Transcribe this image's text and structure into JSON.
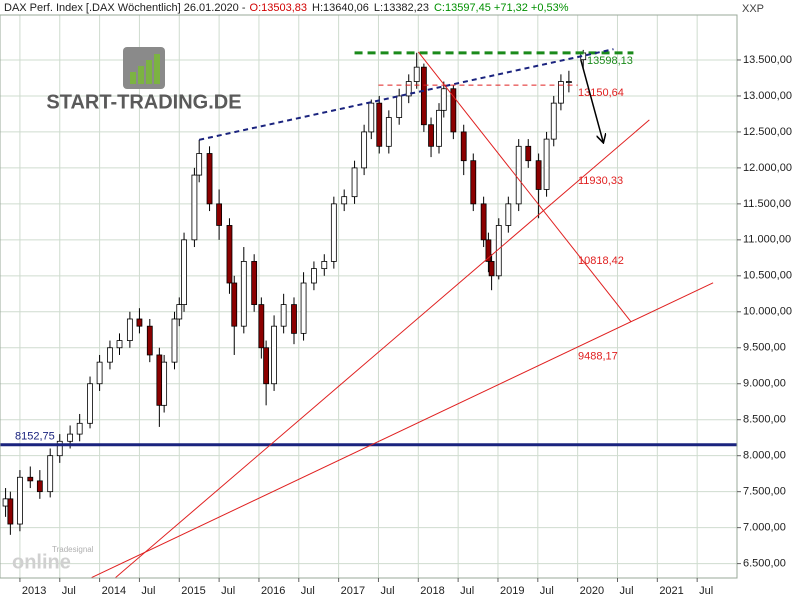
{
  "chart_data": {
    "type": "candlestick",
    "title": "DAX Perf. Index [.DAX  Wöchentlich] 26.01.2020 -",
    "quote": [
      {
        "text": "O:13503,83",
        "color": "#d00000"
      },
      {
        "text": "H:13640,06",
        "color": "#202020"
      },
      {
        "text": "L:13382,23",
        "color": "#202020"
      },
      {
        "text": "C:13597,45 +71,32 +0,53%",
        "color": "#009000"
      }
    ],
    "y_axis_label": "XXP",
    "watermarks": {
      "brand": "START-TRADING.DE",
      "vendor": "Tradesignal",
      "product": "online"
    },
    "up_color": "#ffffff",
    "down_color": "#8b0000",
    "wick_color": "#000000",
    "grid": true,
    "grid_color": "#cfdccf",
    "xlim": [
      2012.75,
      2022.0
    ],
    "ylim": [
      6300,
      14125
    ],
    "xticks": [
      2013,
      {
        "value": 2013.5,
        "label": "Jul"
      },
      2014,
      {
        "value": 2014.5,
        "label": "Jul"
      },
      2015,
      {
        "value": 2015.5,
        "label": "Jul"
      },
      2016,
      {
        "value": 2016.5,
        "label": "Jul"
      },
      2017,
      {
        "value": 2017.5,
        "label": "Jul"
      },
      2018,
      {
        "value": 2018.5,
        "label": "Jul"
      },
      2019,
      {
        "value": 2019.5,
        "label": "Jul"
      },
      2020,
      {
        "value": 2020.5,
        "label": "Jul"
      },
      2021,
      {
        "value": 2021.5,
        "label": "Jul"
      }
    ],
    "yticks": [
      {
        "value": 6500,
        "label": "6.500,00"
      },
      {
        "value": 7000,
        "label": "7.000,00"
      },
      {
        "value": 7500,
        "label": "7.500,00"
      },
      {
        "value": 8000,
        "label": "8.000,00"
      },
      {
        "value": 8500,
        "label": "8.500,00"
      },
      {
        "value": 9000,
        "label": "9.000,00"
      },
      {
        "value": 9500,
        "label": "9.500,00"
      },
      {
        "value": 10000,
        "label": "10.000,00"
      },
      {
        "value": 10500,
        "label": "10.500,00"
      },
      {
        "value": 11000,
        "label": "11.000,00"
      },
      {
        "value": 11500,
        "label": "11.500,00"
      },
      {
        "value": 12000,
        "label": "12.000,00"
      },
      {
        "value": 12500,
        "label": "12.500,00"
      },
      {
        "value": 13000,
        "label": "13.000,00"
      },
      {
        "value": 13500,
        "label": "13.500,00"
      }
    ],
    "x": [
      2012.82,
      2012.88,
      2013.0,
      2013.13,
      2013.25,
      2013.38,
      2013.5,
      2013.63,
      2013.75,
      2013.88,
      2014.0,
      2014.13,
      2014.25,
      2014.38,
      2014.5,
      2014.63,
      2014.75,
      2014.81,
      2014.94,
      2015.0,
      2015.06,
      2015.19,
      2015.25,
      2015.38,
      2015.5,
      2015.63,
      2015.69,
      2015.81,
      2015.94,
      2016.03,
      2016.09,
      2016.19,
      2016.31,
      2016.44,
      2016.56,
      2016.69,
      2016.82,
      2016.94,
      2017.07,
      2017.2,
      2017.32,
      2017.41,
      2017.51,
      2017.63,
      2017.76,
      2017.88,
      2017.98,
      2018.07,
      2018.16,
      2018.26,
      2018.32,
      2018.44,
      2018.57,
      2018.69,
      2018.82,
      2018.88,
      2018.92,
      2019.01,
      2019.13,
      2019.26,
      2019.38,
      2019.51,
      2019.61,
      2019.7,
      2019.79,
      2019.89,
      2020.07
    ],
    "open": [
      7300,
      7400,
      7050,
      7700,
      7650,
      7500,
      8000,
      8200,
      8300,
      8450,
      9000,
      9300,
      9500,
      9600,
      9900,
      9800,
      9400,
      8700,
      9300,
      9900,
      10100,
      11000,
      11900,
      12200,
      11500,
      11200,
      10400,
      9800,
      10700,
      10100,
      9500,
      9000,
      9800,
      10100,
      9700,
      10400,
      10600,
      10700,
      11500,
      11600,
      12000,
      12500,
      12900,
      12300,
      12700,
      13000,
      13200,
      13400,
      12600,
      12300,
      12800,
      13100,
      12500,
      12100,
      11500,
      11000,
      10700,
      10500,
      11200,
      11500,
      12300,
      12100,
      11700,
      12400,
      12900,
      13200,
      13503.83
    ],
    "high": [
      7550,
      7500,
      7800,
      7850,
      7800,
      8100,
      8300,
      8420,
      8580,
      9100,
      9400,
      9600,
      9700,
      10000,
      10050,
      9900,
      9500,
      9400,
      10000,
      10200,
      11100,
      12000,
      12390,
      12300,
      11700,
      11300,
      10500,
      10900,
      10800,
      10200,
      9600,
      9950,
      10250,
      10200,
      10550,
      10700,
      10800,
      11600,
      11700,
      12100,
      12600,
      12950,
      13000,
      12800,
      13100,
      13300,
      13600,
      13450,
      12700,
      12900,
      13200,
      13150,
      12600,
      12200,
      11600,
      11100,
      10800,
      11300,
      11600,
      12400,
      12400,
      12200,
      12500,
      13000,
      13300,
      13350,
      13640.06
    ],
    "low": [
      7150,
      6900,
      6950,
      7550,
      7400,
      7420,
      7900,
      8100,
      8200,
      8380,
      8900,
      9200,
      9400,
      9500,
      9700,
      9300,
      8400,
      8600,
      9200,
      9800,
      10000,
      10900,
      11800,
      11400,
      11000,
      10250,
      9400,
      9700,
      10000,
      9350,
      8700,
      8900,
      9700,
      9550,
      9600,
      10300,
      10500,
      10600,
      11400,
      11500,
      11900,
      12400,
      12200,
      12200,
      12600,
      12900,
      13100,
      12500,
      12150,
      12200,
      12700,
      12400,
      11900,
      11400,
      10900,
      10550,
      10300,
      10450,
      11100,
      11400,
      12000,
      11300,
      11600,
      12300,
      12800,
      13050,
      13382.23
    ],
    "close": [
      7400,
      7050,
      7700,
      7650,
      7500,
      8000,
      8200,
      8300,
      8450,
      9000,
      9300,
      9500,
      9600,
      9900,
      9800,
      9400,
      8700,
      9300,
      9900,
      10100,
      11000,
      11900,
      12200,
      11500,
      11200,
      10400,
      9800,
      10700,
      10100,
      9500,
      9000,
      9800,
      10100,
      9700,
      10400,
      10600,
      10700,
      11500,
      11600,
      12000,
      12500,
      12900,
      12300,
      12700,
      13000,
      13200,
      13400,
      12600,
      12300,
      12800,
      13100,
      12500,
      12100,
      11500,
      11000,
      10700,
      10500,
      11200,
      11500,
      12300,
      12100,
      11700,
      12400,
      12900,
      13200,
      13200,
      13597.45
    ],
    "lines": [
      {
        "x": [
          2012.75,
          2022.0
        ],
        "y": [
          8152.75,
          8152.75
        ],
        "color": "#1a237e",
        "width": 3,
        "dash": false,
        "label": {
          "value": 8152.75,
          "label": "8152,75"
        }
      },
      {
        "x": [
          2017.2,
          2020.7
        ],
        "y": [
          13598.13,
          13598.13
        ],
        "color": "#1a8a1a",
        "width": 3,
        "dash": true,
        "label": {
          "value": 13598.13,
          "label": "13598,13"
        }
      },
      {
        "x": [
          2015.25,
          2020.45
        ],
        "y": [
          12390,
          13650
        ],
        "color": "#1a237e",
        "width": 2,
        "dash": true
      },
      {
        "x": [
          2017.5,
          2020.0
        ],
        "y": [
          13150.64,
          13150.64
        ],
        "color": "#e02020",
        "width": 1,
        "dash": true,
        "label": {
          "value": 13150.64,
          "label": "13150,64"
        }
      },
      {
        "x": [
          2014.2,
          2020.9
        ],
        "y": [
          6306,
          12667
        ],
        "color": "#e02020",
        "width": 1,
        "dash": false,
        "label": {
          "value": 11930.33,
          "label": "11930,33"
        }
      },
      {
        "x": [
          2013.9,
          2021.7
        ],
        "y": [
          6306,
          10403
        ],
        "color": "#e02020",
        "width": 1,
        "dash": false,
        "label": {
          "value": 9488.17,
          "label": "9488,17"
        }
      },
      {
        "x": [
          2018.0,
          2020.67
        ],
        "y": [
          13611,
          9861
        ],
        "color": "#e02020",
        "width": 1,
        "dash": false,
        "label": {
          "value": 10818.42,
          "label": "10818,42"
        }
      },
      {
        "x": [
          2020.04,
          2020.32
        ],
        "y": [
          13500,
          12360
        ],
        "color": "#000000",
        "width": 1.5,
        "dash": false,
        "arrow": true
      }
    ]
  }
}
